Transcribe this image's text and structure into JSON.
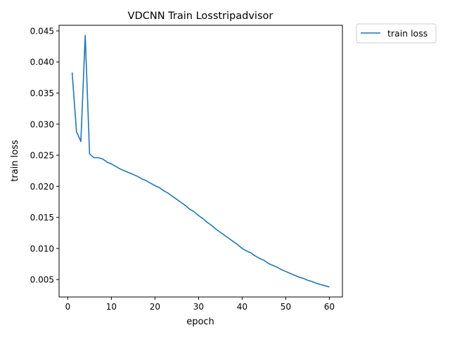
{
  "chart_data": {
    "type": "line",
    "title": "VDCNN Train Losstripadvisor",
    "xlabel": "epoch",
    "ylabel": "train loss",
    "xlim": [
      -2,
      63
    ],
    "ylim": [
      0.0022,
      0.0459
    ],
    "xticks": [
      0,
      10,
      20,
      30,
      40,
      50,
      60
    ],
    "xtick_labels": [
      "0",
      "10",
      "20",
      "30",
      "40",
      "50",
      "60"
    ],
    "yticks": [
      0.005,
      0.01,
      0.015,
      0.02,
      0.025,
      0.03,
      0.035,
      0.04,
      0.045
    ],
    "ytick_labels": [
      "0.005",
      "0.010",
      "0.015",
      "0.020",
      "0.025",
      "0.030",
      "0.035",
      "0.040",
      "0.045"
    ],
    "grid": false,
    "legend_position": "outside-top-right",
    "series": [
      {
        "name": "train loss",
        "color": "#1f77b4",
        "x": [
          1,
          2,
          3,
          4,
          5,
          6,
          7,
          8,
          9,
          10,
          11,
          12,
          13,
          14,
          15,
          16,
          17,
          18,
          19,
          20,
          21,
          22,
          23,
          24,
          25,
          26,
          27,
          28,
          29,
          30,
          31,
          32,
          33,
          34,
          35,
          36,
          37,
          38,
          39,
          40,
          41,
          42,
          43,
          44,
          45,
          46,
          47,
          48,
          49,
          50,
          51,
          52,
          53,
          54,
          55,
          56,
          57,
          58,
          59,
          60
        ],
        "values": [
          0.0383,
          0.0288,
          0.0272,
          0.0443,
          0.0252,
          0.0246,
          0.0246,
          0.0244,
          0.0239,
          0.0236,
          0.0232,
          0.0228,
          0.0225,
          0.0222,
          0.0219,
          0.0216,
          0.0212,
          0.0209,
          0.0205,
          0.0201,
          0.0198,
          0.0193,
          0.0189,
          0.0184,
          0.0179,
          0.0174,
          0.0169,
          0.0163,
          0.0159,
          0.0153,
          0.0148,
          0.0142,
          0.0137,
          0.0131,
          0.0126,
          0.0121,
          0.0116,
          0.0111,
          0.0106,
          0.01,
          0.0096,
          0.0093,
          0.0088,
          0.0084,
          0.0081,
          0.0076,
          0.0073,
          0.007,
          0.0066,
          0.0063,
          0.006,
          0.0057,
          0.0054,
          0.0052,
          0.0049,
          0.0047,
          0.0044,
          0.0042,
          0.004,
          0.0038
        ]
      }
    ]
  }
}
